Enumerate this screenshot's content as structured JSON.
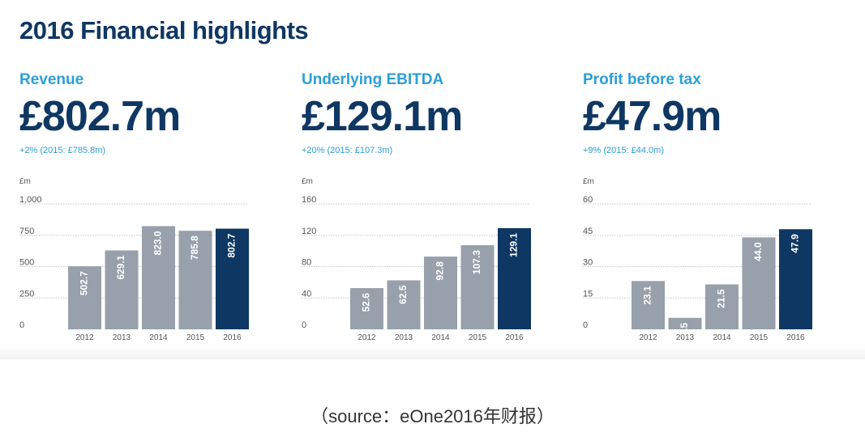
{
  "page_title": "2016 Financial highlights",
  "colors": {
    "title": "#0f3763",
    "metric_name": "#2a9fd6",
    "bar_previous": "#98a0ab",
    "bar_current": "#0f3763",
    "gridline": "#bfc4ca",
    "tick": "#555555"
  },
  "caption": {
    "open": "（",
    "text": "source：eOne2016年财报",
    "close": "）"
  },
  "panels": [
    {
      "name": "Revenue",
      "value": "£802.7m",
      "change": "+2% (2015: £785.8m)"
    },
    {
      "name": "Underlying EBITDA",
      "value": "£129.1m",
      "change": "+20% (2015: £107.3m)"
    },
    {
      "name": "Profit before tax",
      "value": "£47.9m",
      "change": "+9% (2015: £44.0m)"
    }
  ],
  "chart_data": [
    {
      "type": "bar",
      "unit_label": "£m",
      "categories": [
        "2012",
        "2013",
        "2014",
        "2015",
        "2016"
      ],
      "values": [
        502.7,
        629.1,
        823.0,
        785.8,
        802.7
      ],
      "value_labels": [
        "502.7",
        "629.1",
        "823.0",
        "785.8",
        "802.7"
      ],
      "yticks": [
        0,
        250,
        500,
        750,
        1000
      ],
      "ytick_labels": [
        "0",
        "250",
        "500",
        "750",
        "1,000"
      ],
      "ylim": [
        0,
        1000
      ],
      "highlight_index": 4,
      "grid": true
    },
    {
      "type": "bar",
      "unit_label": "£m",
      "categories": [
        "2012",
        "2013",
        "2014",
        "2015",
        "2016"
      ],
      "values": [
        52.6,
        62.5,
        92.8,
        107.3,
        129.1
      ],
      "value_labels": [
        "52.6",
        "62.5",
        "92.8",
        "107.3",
        "129.1"
      ],
      "yticks": [
        0,
        40,
        80,
        120,
        160
      ],
      "ytick_labels": [
        "0",
        "40",
        "80",
        "120",
        "160"
      ],
      "ylim": [
        0,
        160
      ],
      "highlight_index": 4,
      "grid": true
    },
    {
      "type": "bar",
      "unit_label": "£m",
      "categories": [
        "2012",
        "2013",
        "2014",
        "2015",
        "2016"
      ],
      "values": [
        23.1,
        5.5,
        21.5,
        44.0,
        47.9
      ],
      "value_labels": [
        "23.1",
        "5.5",
        "21.5",
        "44.0",
        "47.9"
      ],
      "yticks": [
        0,
        15,
        30,
        45,
        60
      ],
      "ytick_labels": [
        "0",
        "15",
        "30",
        "45",
        "60"
      ],
      "ylim": [
        0,
        60
      ],
      "highlight_index": 4,
      "grid": true
    }
  ]
}
